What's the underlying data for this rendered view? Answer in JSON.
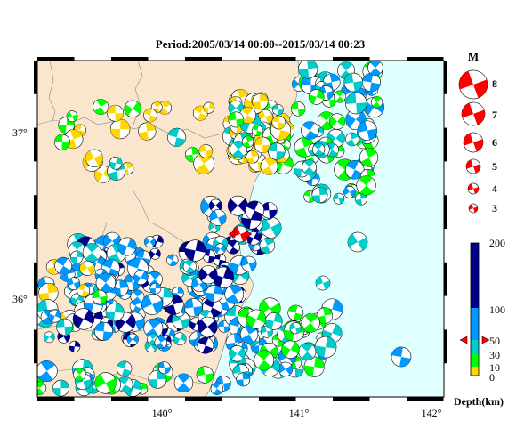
{
  "title": "Period:2005/03/14 00:00--2015/03/14 00:23",
  "map": {
    "lon_ticks": [
      "140°",
      "141°",
      "142°"
    ],
    "lat_ticks": [
      "37°",
      "36°"
    ],
    "land_color": "#fae6cc",
    "sea_color": "#e0ffff",
    "mainshock_color": "#ff0000"
  },
  "magnitude_legend": {
    "title": "M",
    "values": [
      "8",
      "7",
      "6",
      "5",
      "4",
      "3"
    ],
    "color": "#ff0000"
  },
  "depth_scale": {
    "title": "Depth(km)",
    "labels": [
      "200",
      "100",
      "50",
      "30",
      "10",
      "0"
    ],
    "colors": [
      "#00008b",
      "#0099ff",
      "#00cccc",
      "#00ff00",
      "#ffd700"
    ]
  }
}
